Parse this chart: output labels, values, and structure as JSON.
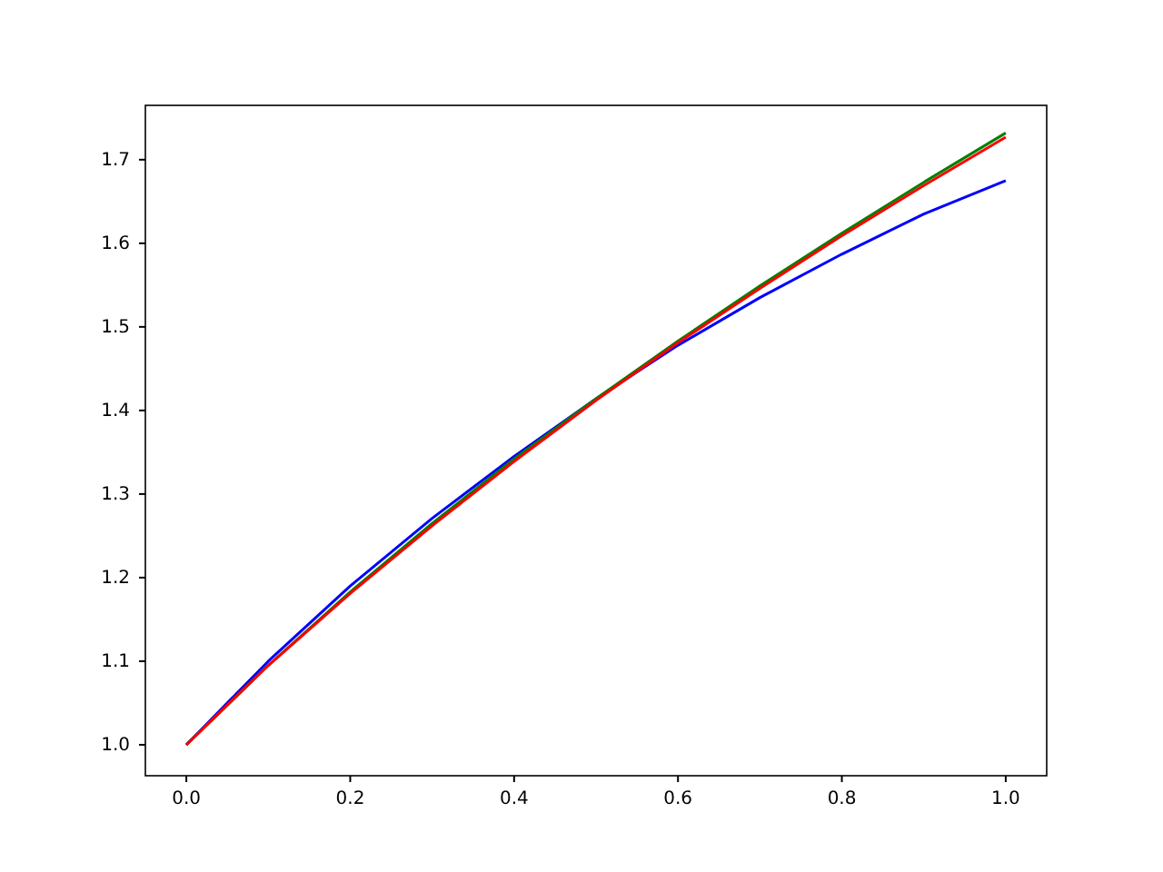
{
  "chart_data": {
    "type": "line",
    "x": [
      0,
      0.1,
      0.2,
      0.3,
      0.4,
      0.5,
      0.6,
      0.7,
      0.8,
      0.9,
      1.0
    ],
    "series": [
      {
        "color": "#0000ff",
        "values": [
          1,
          1.1,
          1.19,
          1.271,
          1.345,
          1.414,
          1.478,
          1.535,
          1.587,
          1.635,
          1.675
        ]
      },
      {
        "color": "#008000",
        "values": [
          1,
          1.095,
          1.183,
          1.265,
          1.342,
          1.414,
          1.483,
          1.549,
          1.612,
          1.673,
          1.732
        ]
      },
      {
        "color": "#ff0000",
        "values": [
          1,
          1.095,
          1.181,
          1.262,
          1.339,
          1.412,
          1.481,
          1.546,
          1.609,
          1.669,
          1.727
        ]
      }
    ],
    "xlim": [
      -0.05,
      1.05
    ],
    "ylim": [
      0.963,
      1.765
    ],
    "xticks": [
      {
        "value": 0,
        "label": "0.0"
      },
      0.2,
      0.4,
      0.6,
      0.8,
      {
        "value": 1,
        "label": "1.0"
      }
    ],
    "yticks": [
      {
        "value": 1,
        "label": "1.0"
      },
      1.1,
      1.2,
      1.3,
      1.4,
      1.5,
      1.6,
      1.7
    ],
    "grid": false
  }
}
